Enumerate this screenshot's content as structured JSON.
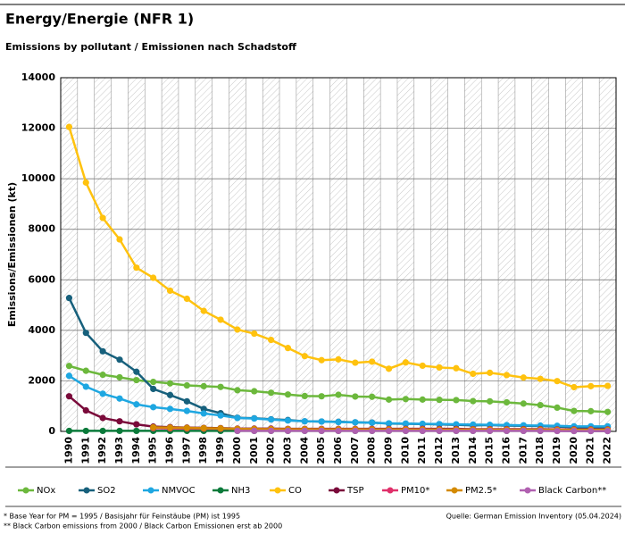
{
  "chart_data": {
    "type": "line",
    "title": "Energy/Energie (NFR 1)",
    "subtitle": "Emissions by pollutant / Emissionen nach Schadstoff",
    "y_label": "Emissions/Emissionen (kt)",
    "categories": [
      "1990",
      "1991",
      "1992",
      "1993",
      "1994",
      "1995",
      "1996",
      "1997",
      "1998",
      "1999",
      "2000",
      "2001",
      "2002",
      "2003",
      "2004",
      "2005",
      "2006",
      "2007",
      "2008",
      "2009",
      "2010",
      "2011",
      "2012",
      "2013",
      "2014",
      "2015",
      "2016",
      "2017",
      "2018",
      "2019",
      "2020",
      "2021",
      "2022"
    ],
    "ylim": [
      0,
      14000
    ],
    "yticks": [
      0,
      2000,
      4000,
      6000,
      8000,
      10000,
      12000,
      14000
    ],
    "grid": true,
    "legend": "bottom",
    "series": [
      {
        "name": "NOx",
        "color": "#6cb83c",
        "values": [
          2590,
          2400,
          2240,
          2140,
          2030,
          1960,
          1900,
          1820,
          1790,
          1760,
          1630,
          1590,
          1530,
          1460,
          1400,
          1390,
          1450,
          1380,
          1370,
          1260,
          1280,
          1260,
          1250,
          1240,
          1200,
          1190,
          1150,
          1100,
          1040,
          940,
          810,
          800,
          770
        ]
      },
      {
        "name": "SO2",
        "color": "#17607c",
        "values": [
          5280,
          3900,
          3170,
          2840,
          2360,
          1680,
          1440,
          1190,
          890,
          720,
          540,
          520,
          480,
          450,
          400,
          390,
          380,
          360,
          350,
          310,
          300,
          290,
          280,
          260,
          240,
          250,
          230,
          220,
          210,
          190,
          170,
          170,
          170
        ]
      },
      {
        "name": "NMVOC",
        "color": "#1ea7e1",
        "values": [
          2200,
          1770,
          1490,
          1300,
          1070,
          960,
          890,
          810,
          710,
          630,
          530,
          510,
          470,
          430,
          400,
          390,
          370,
          360,
          340,
          320,
          310,
          300,
          290,
          280,
          270,
          260,
          250,
          240,
          230,
          220,
          200,
          200,
          200
        ]
      },
      {
        "name": "NH3",
        "color": "#0a7a3a",
        "values": [
          20,
          20,
          20,
          20,
          20,
          20,
          20,
          20,
          20,
          20,
          20,
          20,
          20,
          20,
          20,
          20,
          20,
          20,
          20,
          20,
          20,
          20,
          20,
          20,
          20,
          20,
          20,
          20,
          20,
          20,
          15,
          15,
          15
        ]
      },
      {
        "name": "CO",
        "color": "#ffc20e",
        "values": [
          12050,
          9850,
          8450,
          7600,
          6480,
          6080,
          5570,
          5250,
          4770,
          4420,
          4030,
          3870,
          3620,
          3300,
          2980,
          2820,
          2850,
          2720,
          2760,
          2480,
          2730,
          2600,
          2530,
          2500,
          2280,
          2320,
          2230,
          2130,
          2080,
          1990,
          1750,
          1790,
          1800
        ]
      },
      {
        "name": "TSP",
        "color": "#7a0a3a",
        "values": [
          1390,
          830,
          530,
          400,
          280,
          190,
          170,
          150,
          140,
          130,
          110,
          110,
          110,
          100,
          100,
          100,
          100,
          100,
          100,
          100,
          100,
          100,
          100,
          100,
          90,
          90,
          90,
          90,
          90,
          80,
          80,
          80,
          80
        ]
      },
      {
        "name": "PM10*",
        "color": "#e0306a",
        "values": [
          null,
          null,
          null,
          null,
          null,
          130,
          120,
          115,
          110,
          105,
          100,
          95,
          95,
          90,
          90,
          90,
          90,
          90,
          85,
          85,
          85,
          85,
          80,
          80,
          80,
          80,
          75,
          75,
          75,
          70,
          70,
          70,
          70
        ]
      },
      {
        "name": "PM2.5*",
        "color": "#d48a00",
        "values": [
          null,
          null,
          null,
          null,
          null,
          160,
          150,
          140,
          130,
          120,
          100,
          95,
          90,
          85,
          85,
          80,
          80,
          80,
          75,
          75,
          75,
          70,
          70,
          70,
          70,
          65,
          65,
          65,
          65,
          60,
          60,
          60,
          60
        ]
      },
      {
        "name": "Black Carbon**",
        "color": "#b060b0",
        "values": [
          null,
          null,
          null,
          null,
          null,
          null,
          null,
          null,
          null,
          null,
          20,
          20,
          20,
          20,
          20,
          20,
          20,
          20,
          20,
          20,
          20,
          20,
          20,
          20,
          20,
          20,
          20,
          20,
          20,
          15,
          15,
          15,
          15
        ]
      }
    ],
    "footnotes": [
      "* Base Year for PM = 1995 / Basisjahr für Feinstäube (PM) ist 1995",
      "** Black Carbon emissions from 2000 / Black Carbon Emissionen erst ab 2000"
    ],
    "source": "Quelle: German Emission Inventory (05.04.2024)"
  }
}
